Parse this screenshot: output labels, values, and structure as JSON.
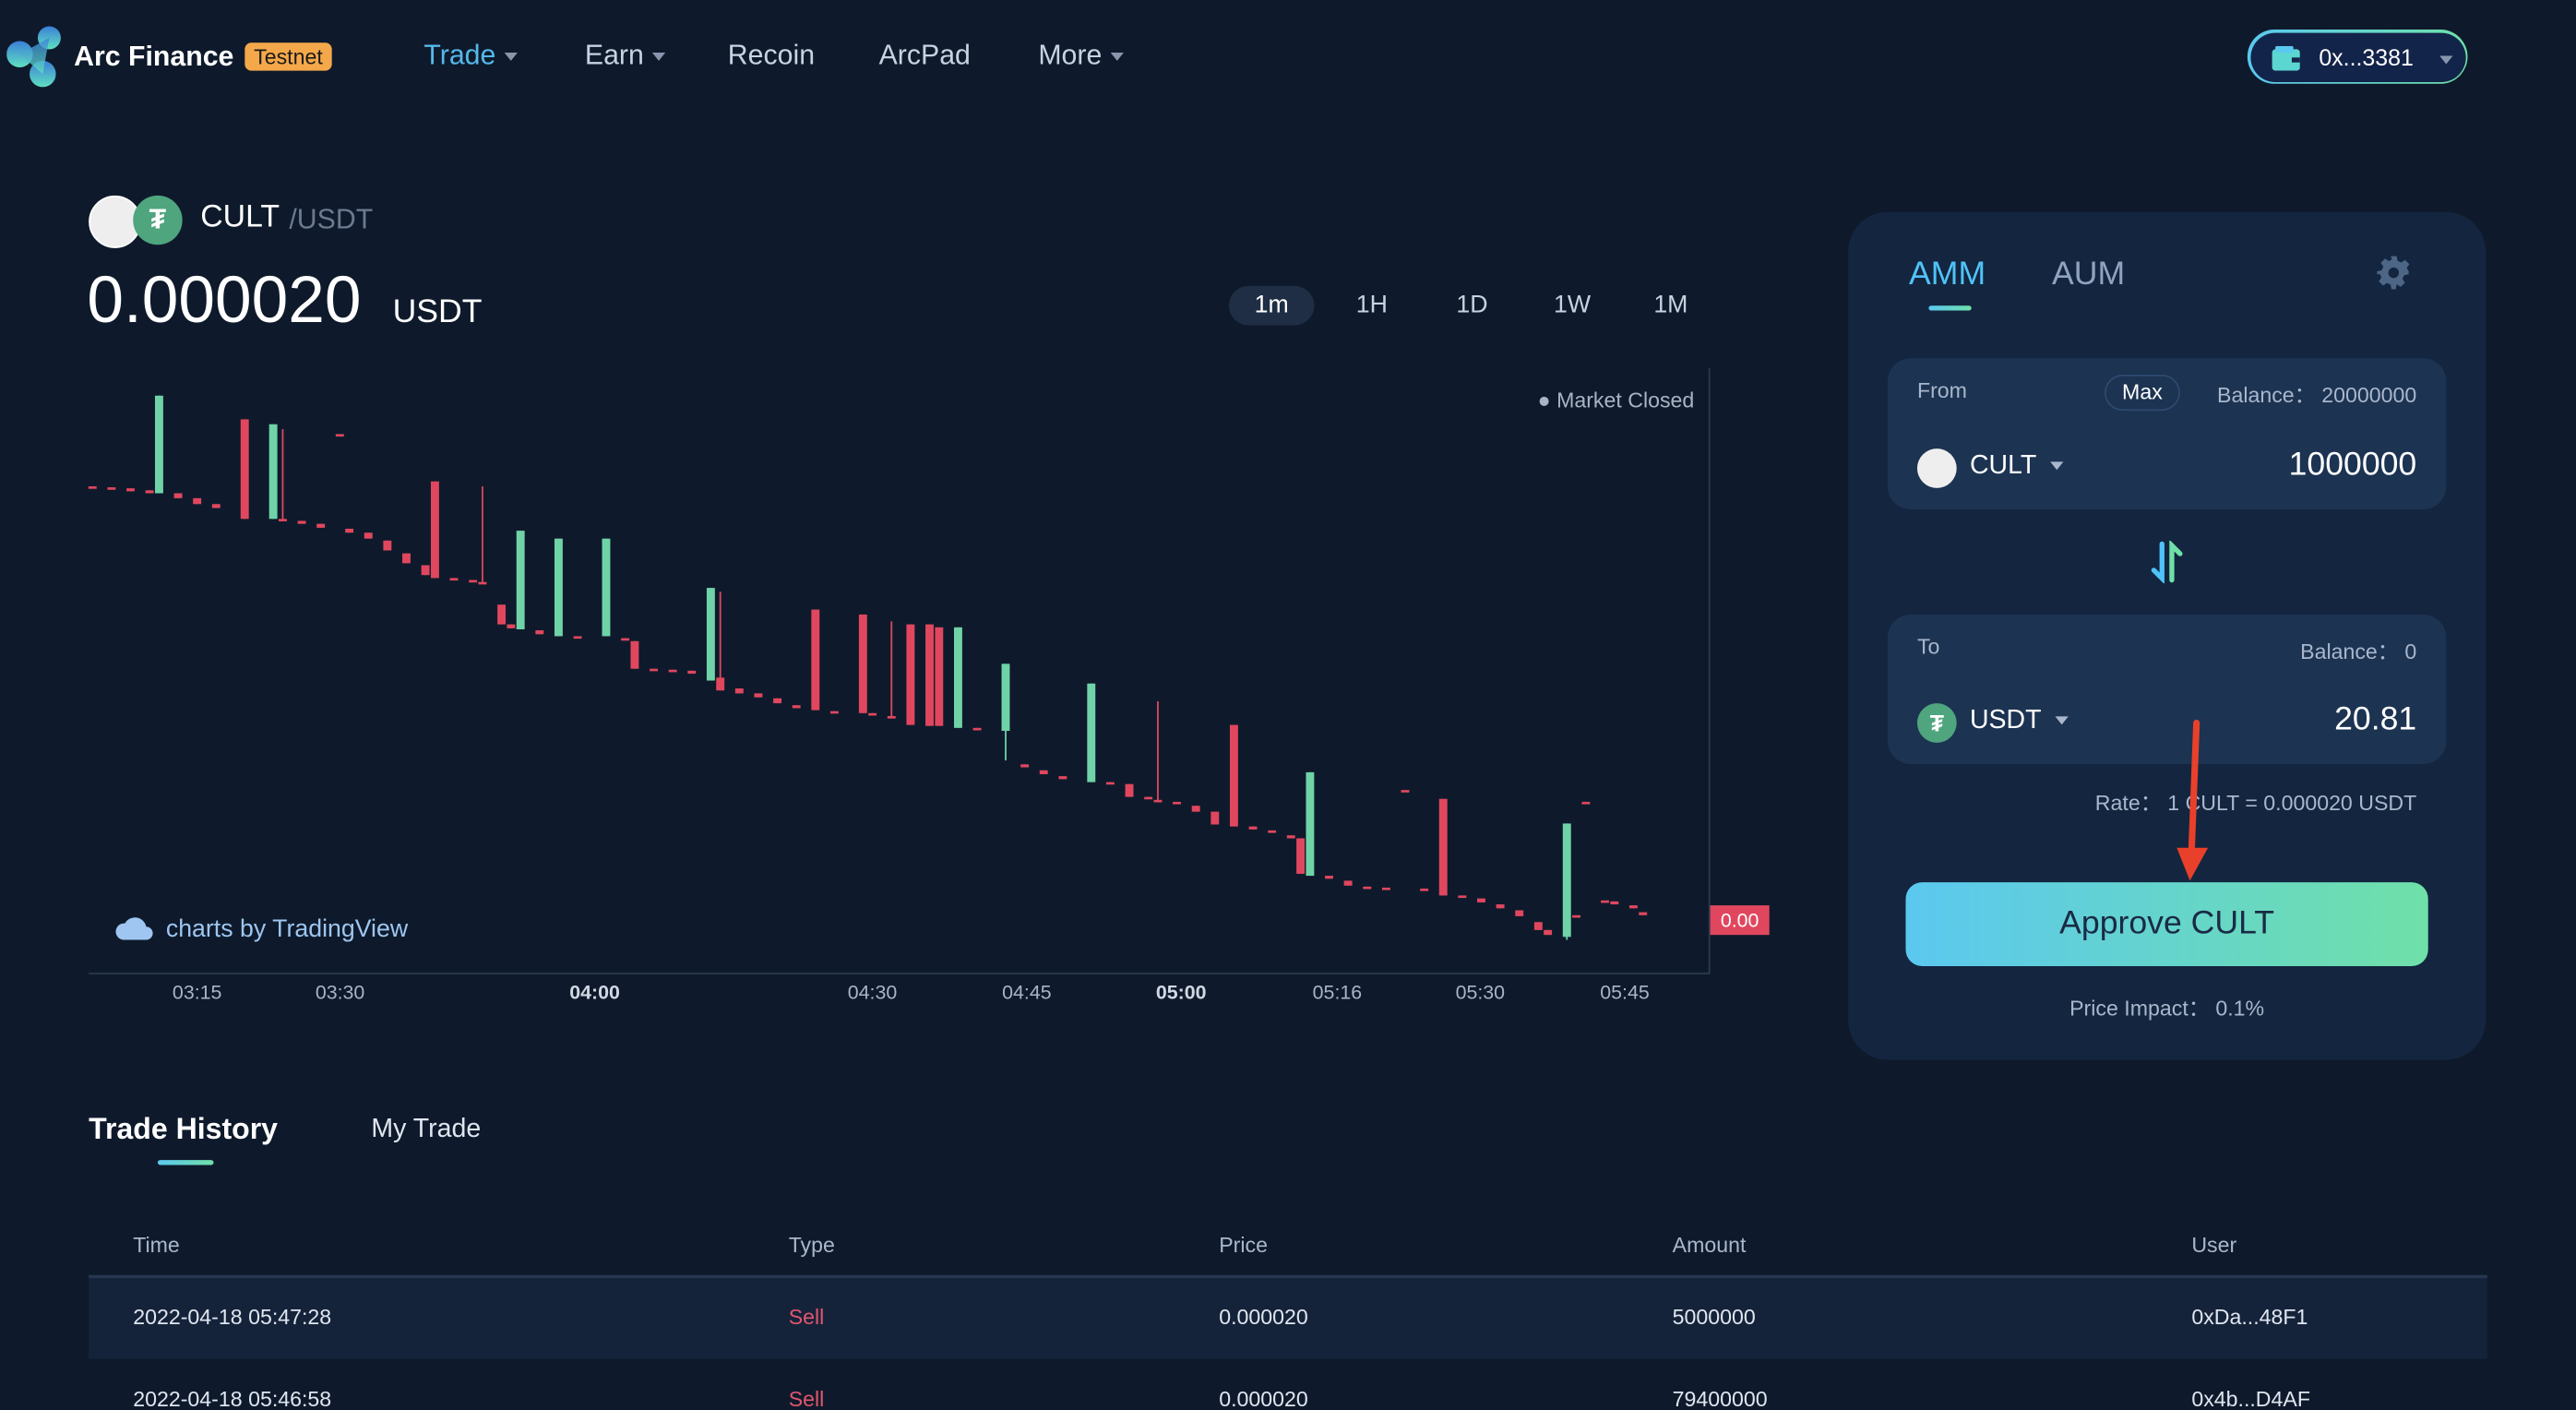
{
  "header": {
    "brand": "Arc Finance",
    "badge": "Testnet",
    "nav": [
      {
        "label": "Trade",
        "dropdown": true,
        "active": true
      },
      {
        "label": "Earn",
        "dropdown": true
      },
      {
        "label": "Recoin"
      },
      {
        "label": "ArcPad"
      },
      {
        "label": "More",
        "dropdown": true
      }
    ],
    "wallet": "0x...3381"
  },
  "pair": {
    "base": "CULT",
    "quote": "/USDT",
    "price": "0.000020",
    "price_unit": "USDT"
  },
  "timeframes": [
    "1m",
    "1H",
    "1D",
    "1W",
    "1M"
  ],
  "active_timeframe": "1m",
  "chart": {
    "status": "Market Closed",
    "attribution": "charts by TradingView",
    "last_price_label": "0.00",
    "colors": {
      "up": "#6fd3a7",
      "down": "#e0475f"
    }
  },
  "chart_data": {
    "type": "candlestick",
    "unit": "price x 1e-6 USDT",
    "x_unit": "minutes after 03:00",
    "x_tick_labels": [
      "03:15",
      "03:30",
      "04:00",
      "04:30",
      "04:45",
      "05:00",
      "05:16",
      "05:30",
      "05:45"
    ],
    "ylim": [
      19.9,
      20.5
    ],
    "candles": [
      [
        4,
        20.39,
        20.39,
        20.388,
        20.388
      ],
      [
        6,
        20.389,
        20.389,
        20.387,
        20.387
      ],
      [
        8,
        20.388,
        20.388,
        20.385,
        20.385
      ],
      [
        10,
        20.386,
        20.386,
        20.383,
        20.383
      ],
      [
        11,
        20.383,
        20.482,
        20.383,
        20.482
      ],
      [
        13,
        20.383,
        20.383,
        20.378,
        20.378
      ],
      [
        15,
        20.378,
        20.378,
        20.372,
        20.372
      ],
      [
        17,
        20.372,
        20.372,
        20.368,
        20.368
      ],
      [
        20,
        20.458,
        20.458,
        20.357,
        20.357
      ],
      [
        23,
        20.357,
        20.453,
        20.357,
        20.453
      ],
      [
        24,
        20.357,
        20.448,
        20.355,
        20.355
      ],
      [
        26,
        20.355,
        20.355,
        20.352,
        20.352
      ],
      [
        28,
        20.352,
        20.352,
        20.348,
        20.348
      ],
      [
        30,
        20.443,
        20.443,
        20.443,
        20.443
      ],
      [
        31,
        20.347,
        20.347,
        20.343,
        20.343
      ],
      [
        33,
        20.343,
        20.343,
        20.337,
        20.337
      ],
      [
        35,
        20.335,
        20.335,
        20.325,
        20.325
      ],
      [
        37,
        20.322,
        20.322,
        20.312,
        20.312
      ],
      [
        39,
        20.31,
        20.31,
        20.3,
        20.3
      ],
      [
        40,
        20.395,
        20.395,
        20.297,
        20.297
      ],
      [
        42,
        20.297,
        20.297,
        20.295,
        20.295
      ],
      [
        44,
        20.295,
        20.295,
        20.293,
        20.293
      ],
      [
        45,
        20.293,
        20.39,
        20.292,
        20.292
      ],
      [
        47,
        20.27,
        20.27,
        20.25,
        20.25
      ],
      [
        48,
        20.25,
        20.25,
        20.246,
        20.246
      ],
      [
        49,
        20.245,
        20.345,
        20.245,
        20.345
      ],
      [
        51,
        20.244,
        20.244,
        20.24,
        20.24
      ],
      [
        53,
        20.238,
        20.337,
        20.238,
        20.337
      ],
      [
        55,
        20.238,
        20.238,
        20.237,
        20.237
      ],
      [
        58,
        20.238,
        20.337,
        20.238,
        20.337
      ],
      [
        60,
        20.236,
        20.236,
        20.234,
        20.234
      ],
      [
        61,
        20.233,
        20.233,
        20.205,
        20.205
      ],
      [
        63,
        20.205,
        20.205,
        20.204,
        20.204
      ],
      [
        65,
        20.204,
        20.204,
        20.203,
        20.203
      ],
      [
        67,
        20.203,
        20.203,
        20.2,
        20.2
      ],
      [
        69,
        20.193,
        20.287,
        20.193,
        20.287
      ],
      [
        70,
        20.196,
        20.283,
        20.183,
        20.183
      ],
      [
        72,
        20.185,
        20.185,
        20.18,
        20.18
      ],
      [
        74,
        20.18,
        20.18,
        20.176,
        20.176
      ],
      [
        76,
        20.175,
        20.175,
        20.17,
        20.17
      ],
      [
        78,
        20.168,
        20.168,
        20.165,
        20.165
      ],
      [
        80,
        20.265,
        20.265,
        20.163,
        20.163
      ],
      [
        82,
        20.162,
        20.162,
        20.161,
        20.161
      ],
      [
        85,
        20.26,
        20.26,
        20.16,
        20.16
      ],
      [
        86,
        20.16,
        20.16,
        20.158,
        20.158
      ],
      [
        88,
        20.157,
        20.253,
        20.157,
        20.157
      ],
      [
        90,
        20.25,
        20.25,
        20.148,
        20.148
      ],
      [
        92,
        20.25,
        20.25,
        20.147,
        20.147
      ],
      [
        93,
        20.247,
        20.247,
        20.147,
        20.147
      ],
      [
        95,
        20.145,
        20.247,
        20.145,
        20.247
      ],
      [
        97,
        20.145,
        20.145,
        20.143,
        20.143
      ],
      [
        100,
        20.142,
        20.21,
        20.112,
        20.21
      ],
      [
        102,
        20.108,
        20.108,
        20.105,
        20.105
      ],
      [
        104,
        20.102,
        20.102,
        20.098,
        20.098
      ],
      [
        106,
        20.096,
        20.096,
        20.093,
        20.093
      ],
      [
        109,
        20.09,
        20.19,
        20.09,
        20.19
      ],
      [
        111,
        20.09,
        20.09,
        20.088,
        20.088
      ],
      [
        113,
        20.088,
        20.088,
        20.075,
        20.075
      ],
      [
        115,
        20.075,
        20.075,
        20.073,
        20.073
      ],
      [
        116,
        20.072,
        20.172,
        20.07,
        20.07
      ],
      [
        118,
        20.07,
        20.07,
        20.068,
        20.068
      ],
      [
        120,
        20.066,
        20.066,
        20.06,
        20.06
      ],
      [
        122,
        20.06,
        20.06,
        20.047,
        20.047
      ],
      [
        124,
        20.148,
        20.148,
        20.045,
        20.045
      ],
      [
        126,
        20.045,
        20.045,
        20.042,
        20.042
      ],
      [
        128,
        20.041,
        20.041,
        20.04,
        20.04
      ],
      [
        130,
        20.036,
        20.036,
        20.033,
        20.033
      ],
      [
        131,
        20.033,
        20.033,
        19.997,
        19.997
      ],
      [
        132,
        19.995,
        20.1,
        19.995,
        20.1
      ],
      [
        134,
        19.995,
        19.995,
        19.992,
        19.992
      ],
      [
        136,
        19.99,
        19.99,
        19.985,
        19.985
      ],
      [
        138,
        19.984,
        19.984,
        19.983,
        19.983
      ],
      [
        140,
        19.983,
        19.983,
        19.983,
        19.983
      ],
      [
        142,
        20.082,
        20.082,
        20.082,
        20.082
      ],
      [
        144,
        19.982,
        19.982,
        19.98,
        19.98
      ],
      [
        146,
        20.073,
        20.073,
        19.975,
        19.975
      ],
      [
        148,
        19.975,
        19.975,
        19.974,
        19.974
      ],
      [
        150,
        19.972,
        19.972,
        19.968,
        19.968
      ],
      [
        152,
        19.966,
        19.966,
        19.962,
        19.962
      ],
      [
        154,
        19.96,
        19.96,
        19.954,
        19.954
      ],
      [
        156,
        19.948,
        19.948,
        19.94,
        19.94
      ],
      [
        157,
        19.94,
        19.94,
        19.935,
        19.935
      ],
      [
        159,
        19.933,
        20.048,
        19.93,
        20.048
      ],
      [
        160,
        19.955,
        19.955,
        19.955,
        19.955
      ],
      [
        161,
        20.07,
        20.07,
        20.07,
        20.07
      ],
      [
        163,
        19.97,
        19.97,
        19.97,
        19.97
      ],
      [
        164,
        19.969,
        19.969,
        19.966,
        19.966
      ],
      [
        166,
        19.965,
        19.965,
        19.962,
        19.962
      ],
      [
        167,
        19.958,
        19.958,
        19.955,
        19.955
      ]
    ]
  },
  "swap": {
    "tabs": [
      "AMM",
      "AUM"
    ],
    "from": {
      "label": "From",
      "max": "Max",
      "balance": "Balance： 20000000",
      "token": "CULT",
      "amount": "1000000"
    },
    "to": {
      "label": "To",
      "balance": "Balance： 0",
      "token": "USDT",
      "amount": "20.81"
    },
    "rate": "Rate： 1 CULT = 0.000020 USDT",
    "action": "Approve CULT",
    "price_impact": "Price Impact： 0.1%"
  },
  "history": {
    "tabs": [
      "Trade History",
      "My Trade"
    ],
    "columns": [
      "Time",
      "Type",
      "Price",
      "Amount",
      "User"
    ],
    "rows": [
      [
        "2022-04-18 05:47:28",
        "Sell",
        "0.000020",
        "5000000",
        "0xDa...48F1"
      ],
      [
        "2022-04-18 05:46:58",
        "Sell",
        "0.000020",
        "79400000",
        "0x4b...D4AF"
      ]
    ]
  }
}
